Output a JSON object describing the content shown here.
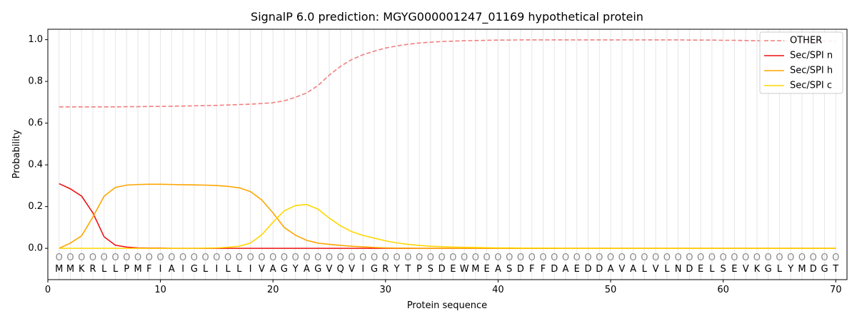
{
  "chart_data": {
    "type": "line",
    "title": "SignalP 6.0 prediction: MGYG000001247_01169 hypothetical protein",
    "xlabel": "Protein sequence",
    "ylabel": "Probability",
    "xlim": [
      0,
      71
    ],
    "ylim": [
      -0.15,
      1.05
    ],
    "xticks": [
      0,
      10,
      20,
      30,
      40,
      50,
      60,
      70
    ],
    "yticks": [
      0.0,
      0.2,
      0.4,
      0.6,
      0.8,
      1.0
    ],
    "ytick_labels": [
      "0.0",
      "0.2",
      "0.4",
      "0.6",
      "0.8",
      "1.0"
    ],
    "grid": "vertical lines at each residue",
    "legend_position": "top-right",
    "sequence": [
      "M",
      "M",
      "K",
      "R",
      "L",
      "L",
      "P",
      "M",
      "F",
      "I",
      "A",
      "I",
      "G",
      "L",
      "I",
      "L",
      "L",
      "I",
      "V",
      "A",
      "G",
      "Y",
      "A",
      "G",
      "V",
      "Q",
      "V",
      "I",
      "G",
      "R",
      "Y",
      "T",
      "P",
      "S",
      "D",
      "E",
      "W",
      "M",
      "E",
      "A",
      "S",
      "D",
      "F",
      "F",
      "D",
      "A",
      "E",
      "D",
      "D",
      "A",
      "V",
      "A",
      "L",
      "V",
      "L",
      "N",
      "D",
      "E",
      "L",
      "S",
      "E",
      "V",
      "K",
      "G",
      "L",
      "Y",
      "M",
      "D",
      "G",
      "T"
    ],
    "sequence_marker": "O",
    "series": [
      {
        "name": "OTHER",
        "color": "#f08080",
        "style": "dashed",
        "values": [
          0.678,
          0.678,
          0.678,
          0.678,
          0.678,
          0.678,
          0.679,
          0.679,
          0.68,
          0.68,
          0.681,
          0.682,
          0.683,
          0.684,
          0.685,
          0.687,
          0.689,
          0.691,
          0.694,
          0.698,
          0.707,
          0.724,
          0.745,
          0.78,
          0.83,
          0.872,
          0.905,
          0.928,
          0.945,
          0.96,
          0.97,
          0.978,
          0.984,
          0.988,
          0.991,
          0.993,
          0.995,
          0.996,
          0.997,
          0.998,
          0.998,
          0.999,
          0.999,
          0.999,
          0.999,
          0.999,
          0.999,
          0.999,
          0.999,
          0.999,
          0.999,
          0.999,
          0.999,
          0.999,
          0.999,
          0.999,
          0.998,
          0.998,
          0.998,
          0.997,
          0.997,
          0.996,
          0.995,
          0.994,
          0.994,
          0.993,
          0.993,
          0.993,
          0.993,
          0.993
        ]
      },
      {
        "name": "Sec/SPI n",
        "color": "#ee1111",
        "style": "solid",
        "values": [
          0.31,
          0.285,
          0.25,
          0.17,
          0.055,
          0.015,
          0.006,
          0.002,
          0.001,
          0.001,
          0.0,
          0.0,
          0.0,
          0.0,
          0.0,
          0.0,
          0.0,
          0.0,
          0.0,
          0.0,
          0.0,
          0.0,
          0.0,
          0.0,
          0.0,
          0.0,
          0.0,
          0.0,
          0.0,
          0.0,
          0.0,
          0.0,
          0.0,
          0.0,
          0.0,
          0.0,
          0.0,
          0.0,
          0.0,
          0.0,
          0.0,
          0.0,
          0.0,
          0.0,
          0.0,
          0.0,
          0.0,
          0.0,
          0.0,
          0.0,
          0.0,
          0.0,
          0.0,
          0.0,
          0.0,
          0.0,
          0.0,
          0.0,
          0.0,
          0.0,
          0.0,
          0.0,
          0.0,
          0.0,
          0.0,
          0.0,
          0.0,
          0.0,
          0.0,
          0.0
        ]
      },
      {
        "name": "Sec/SPI h",
        "color": "#ffa500",
        "style": "solid",
        "values": [
          0.0,
          0.025,
          0.06,
          0.15,
          0.25,
          0.292,
          0.303,
          0.306,
          0.307,
          0.307,
          0.306,
          0.305,
          0.304,
          0.303,
          0.301,
          0.297,
          0.29,
          0.272,
          0.232,
          0.17,
          0.1,
          0.063,
          0.038,
          0.025,
          0.019,
          0.014,
          0.01,
          0.007,
          0.004,
          0.002,
          0.001,
          0.001,
          0.0,
          0.0,
          0.0,
          0.0,
          0.0,
          0.0,
          0.0,
          0.0,
          0.0,
          0.0,
          0.0,
          0.0,
          0.0,
          0.0,
          0.0,
          0.0,
          0.0,
          0.0,
          0.0,
          0.0,
          0.0,
          0.0,
          0.0,
          0.0,
          0.0,
          0.0,
          0.0,
          0.0,
          0.0,
          0.0,
          0.0,
          0.0,
          0.0,
          0.0,
          0.0,
          0.0,
          0.0,
          0.0
        ]
      },
      {
        "name": "Sec/SPI c",
        "color": "#ffd700",
        "style": "solid",
        "values": [
          0.0,
          0.0,
          0.0,
          0.0,
          0.0,
          0.0,
          0.0,
          0.0,
          0.0,
          0.0,
          0.0,
          0.0,
          0.0,
          0.001,
          0.002,
          0.005,
          0.01,
          0.025,
          0.065,
          0.125,
          0.18,
          0.205,
          0.21,
          0.188,
          0.145,
          0.108,
          0.08,
          0.062,
          0.049,
          0.036,
          0.026,
          0.019,
          0.014,
          0.01,
          0.008,
          0.006,
          0.005,
          0.004,
          0.003,
          0.002,
          0.002,
          0.001,
          0.001,
          0.001,
          0.001,
          0.0,
          0.0,
          0.0,
          0.0,
          0.0,
          0.0,
          0.0,
          0.0,
          0.0,
          0.0,
          0.0,
          0.0,
          0.0,
          0.0,
          0.0,
          0.0,
          0.0,
          0.0,
          0.0,
          0.0,
          0.0,
          0.0,
          0.0,
          0.0,
          0.0
        ]
      }
    ]
  }
}
